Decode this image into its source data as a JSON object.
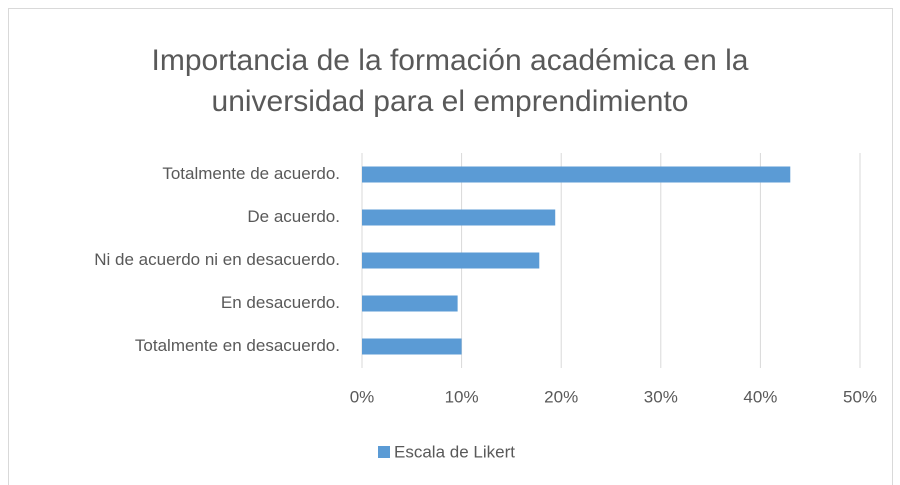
{
  "chart_data": {
    "type": "bar",
    "orientation": "horizontal",
    "title": [
      "Importancia de la formación académica en la",
      "universidad para el emprendimiento"
    ],
    "categories": [
      "Totalmente de acuerdo.",
      "De acuerdo.",
      "Ni de acuerdo ni en desacuerdo.",
      "En desacuerdo.",
      "Totalmente en desacuerdo."
    ],
    "series": [
      {
        "name": "Escala de Likert",
        "color": "#5b9bd5",
        "values": [
          43,
          19.4,
          17.8,
          9.6,
          10
        ]
      }
    ],
    "xlim": [
      0,
      50
    ],
    "xticks": [
      {
        "value": 0,
        "label": "0%"
      },
      {
        "value": 10,
        "label": "10%"
      },
      {
        "value": 20,
        "label": "20%"
      },
      {
        "value": 30,
        "label": "30%"
      },
      {
        "value": 40,
        "label": "40%"
      },
      {
        "value": 50,
        "label": "50%"
      }
    ],
    "grid": true,
    "legend": "bottom"
  }
}
